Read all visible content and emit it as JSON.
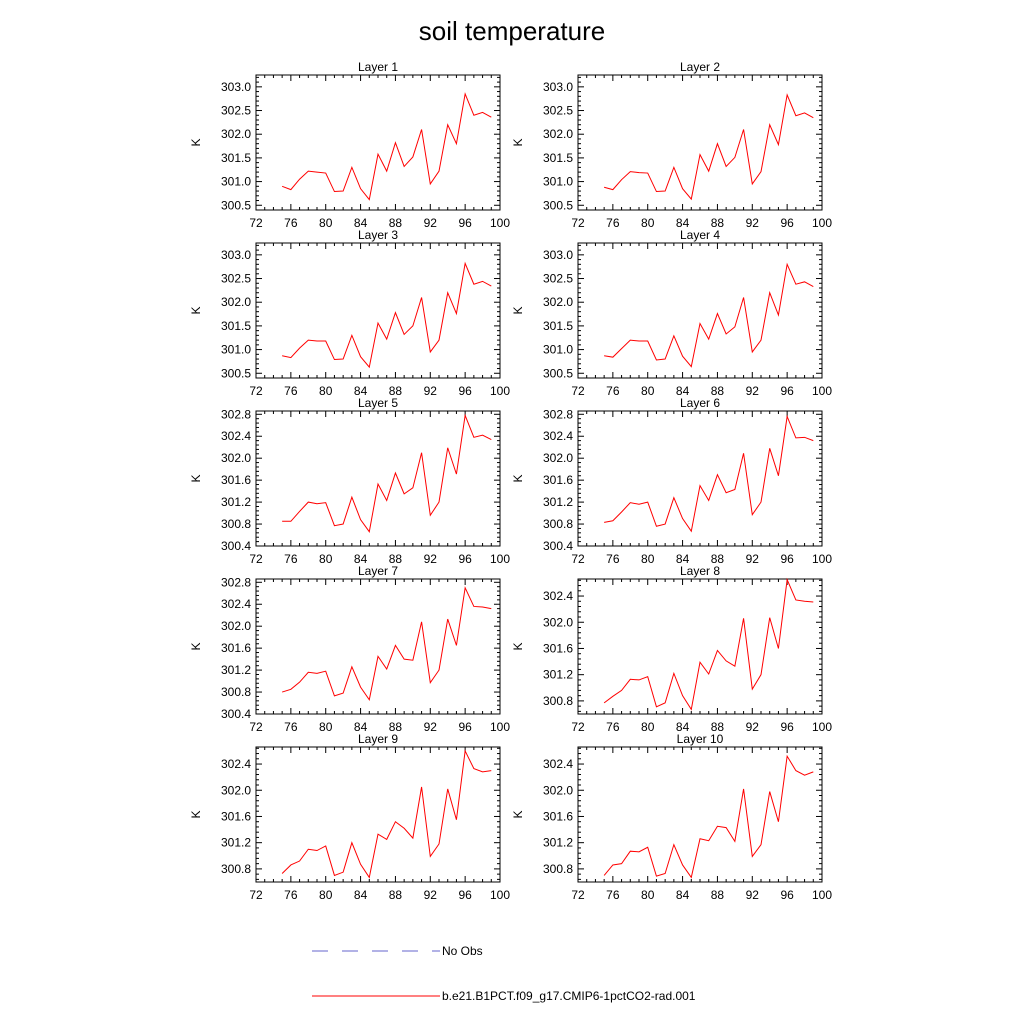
{
  "title": "soil temperature",
  "colors": {
    "model": "#ff0000",
    "obs": "#6666cc",
    "axis": "#000000"
  },
  "legend": [
    {
      "label": "No Obs",
      "style": "dashed",
      "color": "#6666cc"
    },
    {
      "label": "b.e21.B1PCT.f09_g17.CMIP6-1pctCO2-rad.001",
      "style": "solid",
      "color": "#ff0000"
    }
  ],
  "chart_data": [
    {
      "type": "line",
      "title": "Layer 1",
      "ylabel": "K",
      "xlim": [
        72,
        100
      ],
      "ylim": [
        300.4,
        303.25
      ],
      "xticks": [
        72,
        76,
        80,
        84,
        88,
        92,
        96,
        100
      ],
      "yticks": [
        300.5,
        301.0,
        301.5,
        302.0,
        302.5,
        303.0
      ],
      "ydec": 1,
      "series": [
        {
          "x": [
            75,
            76,
            77,
            78,
            79,
            80,
            81,
            82,
            83,
            84,
            85,
            86,
            87,
            88,
            89,
            90,
            91,
            92,
            93,
            94,
            95,
            96,
            97,
            98,
            99
          ],
          "values": [
            300.9,
            300.83,
            301.05,
            301.22,
            301.2,
            301.18,
            300.79,
            300.8,
            301.3,
            300.85,
            300.62,
            301.58,
            301.22,
            301.82,
            301.32,
            301.52,
            302.1,
            300.95,
            301.22,
            302.2,
            301.8,
            302.85,
            302.4,
            302.46,
            302.36
          ]
        }
      ]
    },
    {
      "type": "line",
      "title": "Layer 2",
      "ylabel": "K",
      "xlim": [
        72,
        100
      ],
      "ylim": [
        300.4,
        303.25
      ],
      "xticks": [
        72,
        76,
        80,
        84,
        88,
        92,
        96,
        100
      ],
      "yticks": [
        300.5,
        301.0,
        301.5,
        302.0,
        302.5,
        303.0
      ],
      "ydec": 1,
      "series": [
        {
          "x": [
            75,
            76,
            77,
            78,
            79,
            80,
            81,
            82,
            83,
            84,
            85,
            86,
            87,
            88,
            89,
            90,
            91,
            92,
            93,
            94,
            95,
            96,
            97,
            98,
            99
          ],
          "values": [
            300.88,
            300.83,
            301.04,
            301.21,
            301.19,
            301.18,
            300.79,
            300.8,
            301.3,
            300.85,
            300.63,
            301.57,
            301.22,
            301.8,
            301.32,
            301.51,
            302.1,
            300.95,
            301.21,
            302.2,
            301.78,
            302.83,
            302.39,
            302.45,
            302.35
          ]
        }
      ]
    },
    {
      "type": "line",
      "title": "Layer 3",
      "ylabel": "K",
      "xlim": [
        72,
        100
      ],
      "ylim": [
        300.4,
        303.25
      ],
      "xticks": [
        72,
        76,
        80,
        84,
        88,
        92,
        96,
        100
      ],
      "yticks": [
        300.5,
        301.0,
        301.5,
        302.0,
        302.5,
        303.0
      ],
      "ydec": 1,
      "series": [
        {
          "x": [
            75,
            76,
            77,
            78,
            79,
            80,
            81,
            82,
            83,
            84,
            85,
            86,
            87,
            88,
            89,
            90,
            91,
            92,
            93,
            94,
            95,
            96,
            97,
            98,
            99
          ],
          "values": [
            300.87,
            300.83,
            301.03,
            301.2,
            301.18,
            301.18,
            300.79,
            300.8,
            301.3,
            300.85,
            300.63,
            301.56,
            301.22,
            301.78,
            301.32,
            301.5,
            302.1,
            300.95,
            301.2,
            302.2,
            301.76,
            302.82,
            302.38,
            302.44,
            302.34
          ]
        }
      ]
    },
    {
      "type": "line",
      "title": "Layer 4",
      "ylabel": "K",
      "xlim": [
        72,
        100
      ],
      "ylim": [
        300.4,
        303.25
      ],
      "xticks": [
        72,
        76,
        80,
        84,
        88,
        92,
        96,
        100
      ],
      "yticks": [
        300.5,
        301.0,
        301.5,
        302.0,
        302.5,
        303.0
      ],
      "ydec": 1,
      "series": [
        {
          "x": [
            75,
            76,
            77,
            78,
            79,
            80,
            81,
            82,
            83,
            84,
            85,
            86,
            87,
            88,
            89,
            90,
            91,
            92,
            93,
            94,
            95,
            96,
            97,
            98,
            99
          ],
          "values": [
            300.87,
            300.84,
            301.02,
            301.2,
            301.18,
            301.18,
            300.78,
            300.8,
            301.29,
            300.86,
            300.64,
            301.55,
            301.22,
            301.76,
            301.33,
            301.48,
            302.1,
            300.95,
            301.2,
            302.2,
            301.73,
            302.8,
            302.38,
            302.43,
            302.33
          ]
        }
      ]
    },
    {
      "type": "line",
      "title": "Layer 5",
      "ylabel": "K",
      "xlim": [
        72,
        100
      ],
      "ylim": [
        300.4,
        302.86
      ],
      "xticks": [
        72,
        76,
        80,
        84,
        88,
        92,
        96,
        100
      ],
      "yticks": [
        300.4,
        300.8,
        301.2,
        301.6,
        302.0,
        302.4,
        302.8
      ],
      "ydec": 1,
      "series": [
        {
          "x": [
            75,
            76,
            77,
            78,
            79,
            80,
            81,
            82,
            83,
            84,
            85,
            86,
            87,
            88,
            89,
            90,
            91,
            92,
            93,
            94,
            95,
            96,
            97,
            98,
            99
          ],
          "values": [
            300.85,
            300.85,
            301.03,
            301.2,
            301.17,
            301.19,
            300.77,
            300.8,
            301.29,
            300.88,
            300.66,
            301.53,
            301.23,
            301.73,
            301.35,
            301.46,
            302.1,
            300.96,
            301.2,
            302.19,
            301.71,
            302.78,
            302.38,
            302.42,
            302.34
          ]
        }
      ]
    },
    {
      "type": "line",
      "title": "Layer 6",
      "ylabel": "K",
      "xlim": [
        72,
        100
      ],
      "ylim": [
        300.4,
        302.86
      ],
      "xticks": [
        72,
        76,
        80,
        84,
        88,
        92,
        96,
        100
      ],
      "yticks": [
        300.4,
        300.8,
        301.2,
        301.6,
        302.0,
        302.4,
        302.8
      ],
      "ydec": 1,
      "series": [
        {
          "x": [
            75,
            76,
            77,
            78,
            79,
            80,
            81,
            82,
            83,
            84,
            85,
            86,
            87,
            88,
            89,
            90,
            91,
            92,
            93,
            94,
            95,
            96,
            97,
            98,
            99
          ],
          "values": [
            300.83,
            300.86,
            301.02,
            301.19,
            301.16,
            301.2,
            300.76,
            300.8,
            301.28,
            300.9,
            300.67,
            301.5,
            301.23,
            301.7,
            301.37,
            301.43,
            302.09,
            300.97,
            301.2,
            302.18,
            301.68,
            302.76,
            302.37,
            302.38,
            302.32
          ]
        }
      ]
    },
    {
      "type": "line",
      "title": "Layer 7",
      "ylabel": "K",
      "xlim": [
        72,
        100
      ],
      "ylim": [
        300.4,
        302.86
      ],
      "xticks": [
        72,
        76,
        80,
        84,
        88,
        92,
        96,
        100
      ],
      "yticks": [
        300.4,
        300.8,
        301.2,
        301.6,
        302.0,
        302.4,
        302.8
      ],
      "ydec": 1,
      "series": [
        {
          "x": [
            75,
            76,
            77,
            78,
            79,
            80,
            81,
            82,
            83,
            84,
            85,
            86,
            87,
            88,
            89,
            90,
            91,
            92,
            93,
            94,
            95,
            96,
            97,
            98,
            99
          ],
          "values": [
            300.8,
            300.85,
            300.98,
            301.16,
            301.14,
            301.18,
            300.73,
            300.78,
            301.26,
            300.89,
            300.66,
            301.45,
            301.22,
            301.65,
            301.4,
            301.38,
            302.08,
            300.97,
            301.2,
            302.13,
            301.65,
            302.7,
            302.36,
            302.35,
            302.32
          ]
        }
      ]
    },
    {
      "type": "line",
      "title": "Layer 8",
      "ylabel": "K",
      "xlim": [
        72,
        100
      ],
      "ylim": [
        300.6,
        302.66
      ],
      "xticks": [
        72,
        76,
        80,
        84,
        88,
        92,
        96,
        100
      ],
      "yticks": [
        300.8,
        301.2,
        301.6,
        302.0,
        302.4
      ],
      "ydec": 1,
      "series": [
        {
          "x": [
            75,
            76,
            77,
            78,
            79,
            80,
            81,
            82,
            83,
            84,
            85,
            86,
            87,
            88,
            89,
            90,
            91,
            92,
            93,
            94,
            95,
            96,
            97,
            98,
            99
          ],
          "values": [
            300.77,
            300.87,
            300.96,
            301.13,
            301.12,
            301.17,
            300.71,
            300.77,
            301.22,
            300.88,
            300.67,
            301.39,
            301.21,
            301.57,
            301.41,
            301.33,
            302.06,
            300.98,
            301.2,
            302.07,
            301.6,
            302.65,
            302.34,
            302.32,
            302.31
          ]
        }
      ]
    },
    {
      "type": "line",
      "title": "Layer 9",
      "ylabel": "K",
      "xlim": [
        72,
        100
      ],
      "ylim": [
        300.6,
        302.66
      ],
      "xticks": [
        72,
        76,
        80,
        84,
        88,
        92,
        96,
        100
      ],
      "yticks": [
        300.8,
        301.2,
        301.6,
        302.0,
        302.4
      ],
      "ydec": 1,
      "series": [
        {
          "x": [
            75,
            76,
            77,
            78,
            79,
            80,
            81,
            82,
            83,
            84,
            85,
            86,
            87,
            88,
            89,
            90,
            91,
            92,
            93,
            94,
            95,
            96,
            97,
            98,
            99
          ],
          "values": [
            300.73,
            300.86,
            300.92,
            301.1,
            301.08,
            301.15,
            300.7,
            300.75,
            301.2,
            300.87,
            300.67,
            301.33,
            301.25,
            301.52,
            301.42,
            301.27,
            302.05,
            300.99,
            301.18,
            302.02,
            301.55,
            302.6,
            302.33,
            302.28,
            302.3
          ]
        }
      ]
    },
    {
      "type": "line",
      "title": "Layer 10",
      "ylabel": "K",
      "xlim": [
        72,
        100
      ],
      "ylim": [
        300.6,
        302.66
      ],
      "xticks": [
        72,
        76,
        80,
        84,
        88,
        92,
        96,
        100
      ],
      "yticks": [
        300.8,
        301.2,
        301.6,
        302.0,
        302.4
      ],
      "ydec": 1,
      "series": [
        {
          "x": [
            75,
            76,
            77,
            78,
            79,
            80,
            81,
            82,
            83,
            84,
            85,
            86,
            87,
            88,
            89,
            90,
            91,
            92,
            93,
            94,
            95,
            96,
            97,
            98,
            99
          ],
          "values": [
            300.7,
            300.86,
            300.88,
            301.07,
            301.06,
            301.13,
            300.69,
            300.73,
            301.17,
            300.86,
            300.67,
            301.26,
            301.23,
            301.45,
            301.43,
            301.22,
            302.02,
            300.99,
            301.17,
            301.98,
            301.52,
            302.52,
            302.3,
            302.23,
            302.28
          ]
        }
      ]
    }
  ]
}
